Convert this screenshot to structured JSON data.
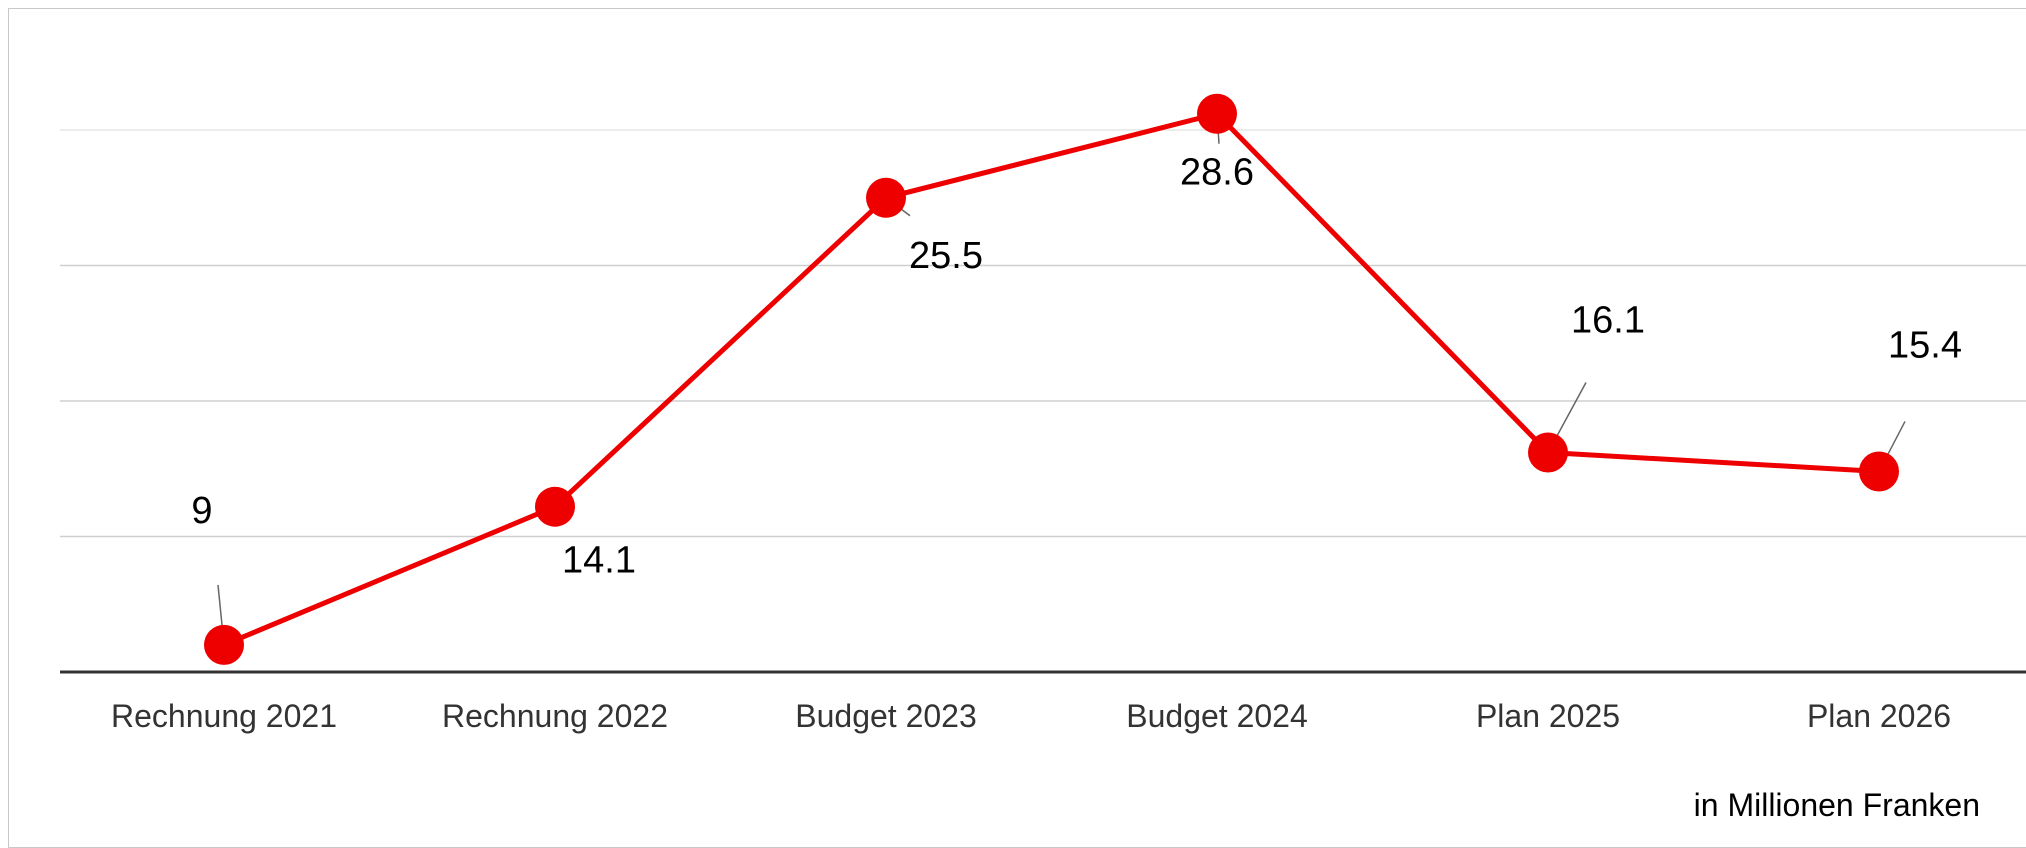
{
  "chart_data": {
    "type": "line",
    "categories": [
      "Rechnung 2021",
      "Rechnung 2022",
      "Budget 2023",
      "Budget 2024",
      "Plan 2025",
      "Plan 2026"
    ],
    "series": [
      {
        "values": [
          9,
          14.1,
          25.5,
          28.6,
          16.1,
          15.4
        ],
        "color": "#ee0000"
      }
    ],
    "data_labels": [
      "9",
      "14.1",
      "25.5",
      "28.6",
      "16.1",
      "15.4"
    ],
    "unit_note": "in Millionen Franken",
    "ylim": [
      8,
      28
    ],
    "grid": true,
    "legend": "none"
  }
}
